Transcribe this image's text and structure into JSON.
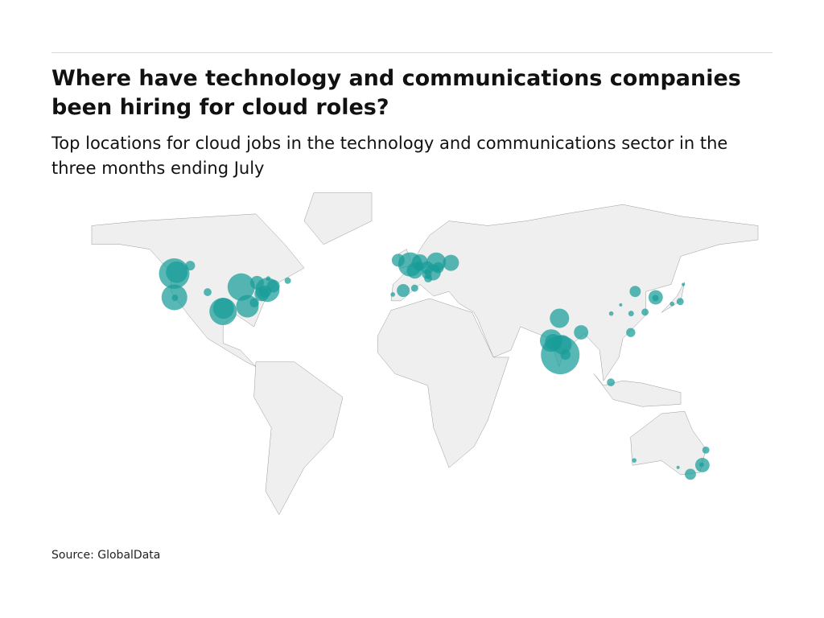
{
  "header": {
    "title": "Where have technology and communications companies been hiring for cloud roles?",
    "subtitle": "Top locations for cloud jobs in the technology and communications sector in the three months ending July"
  },
  "source": "Source: GlobalData",
  "colors": {
    "bubble": "#179c98",
    "land": "#efefef",
    "border": "#9a9a9a"
  },
  "chart_data": {
    "type": "bubble-map",
    "bubbles": [
      {
        "lon": -122.3,
        "lat": 47.6,
        "v": 90
      },
      {
        "lon": -121,
        "lat": 48.2,
        "v": 45
      },
      {
        "lon": -122.2,
        "lat": 37.5,
        "v": 64
      },
      {
        "lon": -121.9,
        "lat": 37.3,
        "v": 4
      },
      {
        "lon": -114,
        "lat": 51,
        "v": 9
      },
      {
        "lon": -105,
        "lat": 39.7,
        "v": 6
      },
      {
        "lon": -97,
        "lat": 31.5,
        "v": 72
      },
      {
        "lon": -96.8,
        "lat": 32.8,
        "v": 42
      },
      {
        "lon": -87.6,
        "lat": 41.9,
        "v": 72
      },
      {
        "lon": -84.4,
        "lat": 33.7,
        "v": 49
      },
      {
        "lon": -80.8,
        "lat": 35.2,
        "v": 8
      },
      {
        "lon": -79.4,
        "lat": 43.7,
        "v": 18
      },
      {
        "lon": -77,
        "lat": 38.9,
        "v": 20
      },
      {
        "lon": -75.2,
        "lat": 40,
        "v": 14
      },
      {
        "lon": -74,
        "lat": 40.7,
        "v": 56
      },
      {
        "lon": -73.6,
        "lat": 45.5,
        "v": 2
      },
      {
        "lon": -71,
        "lat": 42.3,
        "v": 16
      },
      {
        "lon": -63.5,
        "lat": 44.6,
        "v": 4
      },
      {
        "lon": -0.1,
        "lat": 51.5,
        "v": 56
      },
      {
        "lon": -6.3,
        "lat": 53.3,
        "v": 16
      },
      {
        "lon": 2.3,
        "lat": 48.9,
        "v": 25
      },
      {
        "lon": 4.9,
        "lat": 52.4,
        "v": 25
      },
      {
        "lon": 4.4,
        "lat": 50.8,
        "v": 9
      },
      {
        "lon": 8.7,
        "lat": 50.1,
        "v": 16
      },
      {
        "lon": 13.4,
        "lat": 52.5,
        "v": 36
      },
      {
        "lon": 11.6,
        "lat": 48.1,
        "v": 25
      },
      {
        "lon": 8.5,
        "lat": 47.4,
        "v": 9
      },
      {
        "lon": 14.4,
        "lat": 50.1,
        "v": 12
      },
      {
        "lon": 21,
        "lat": 52.2,
        "v": 25
      },
      {
        "lon": 9.2,
        "lat": 45.5,
        "v": 6
      },
      {
        "lon": -3.7,
        "lat": 40.4,
        "v": 16
      },
      {
        "lon": 2.2,
        "lat": 41.4,
        "v": 5
      },
      {
        "lon": -9.1,
        "lat": 38.7,
        "v": 2
      },
      {
        "lon": 77.2,
        "lat": 28.6,
        "v": 36
      },
      {
        "lon": 77.6,
        "lat": 13,
        "v": 144
      },
      {
        "lon": 72.9,
        "lat": 19.1,
        "v": 49
      },
      {
        "lon": 78.5,
        "lat": 17.4,
        "v": 36
      },
      {
        "lon": 73.9,
        "lat": 18.5,
        "v": 25
      },
      {
        "lon": 80.3,
        "lat": 13.1,
        "v": 10
      },
      {
        "lon": 88.4,
        "lat": 22.6,
        "v": 20
      },
      {
        "lon": 116.4,
        "lat": 40,
        "v": 12
      },
      {
        "lon": 121.5,
        "lat": 31.2,
        "v": 5
      },
      {
        "lon": 114.1,
        "lat": 22.5,
        "v": 8
      },
      {
        "lon": 104,
        "lat": 30.6,
        "v": 2
      },
      {
        "lon": 114.3,
        "lat": 30.6,
        "v": 3
      },
      {
        "lon": 108.9,
        "lat": 34.3,
        "v": 1
      },
      {
        "lon": 127,
        "lat": 37.5,
        "v": 20
      },
      {
        "lon": 126.9,
        "lat": 37.2,
        "v": 4
      },
      {
        "lon": 139.7,
        "lat": 35.7,
        "v": 5
      },
      {
        "lon": 135.5,
        "lat": 34.7,
        "v": 2
      },
      {
        "lon": 141.3,
        "lat": 43,
        "v": 1
      },
      {
        "lon": 103.8,
        "lat": 1.3,
        "v": 6
      },
      {
        "lon": 151.2,
        "lat": -33.9,
        "v": 20
      },
      {
        "lon": 150.8,
        "lat": -33.7,
        "v": 2
      },
      {
        "lon": 145,
        "lat": -37.8,
        "v": 12
      },
      {
        "lon": 153,
        "lat": -27.5,
        "v": 5
      },
      {
        "lon": 115.9,
        "lat": -31.9,
        "v": 2
      },
      {
        "lon": 138.6,
        "lat": -34.9,
        "v": 1
      }
    ]
  }
}
